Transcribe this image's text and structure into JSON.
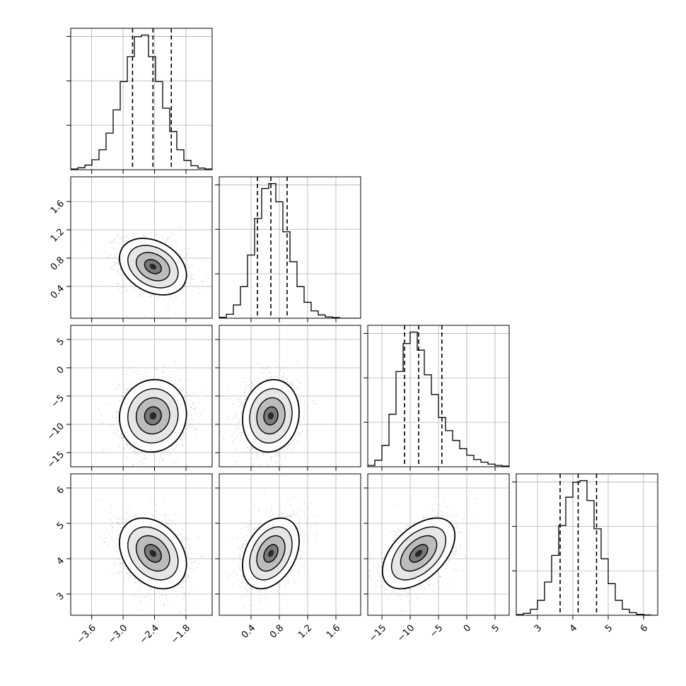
{
  "chart_data": {
    "type": "corner",
    "parameters": [
      {
        "range": [
          -4.0,
          -1.3
        ],
        "ticks": [
          -3.6,
          -3.0,
          -2.4,
          -1.8
        ],
        "tick_labels": [
          "−3.6",
          "−3.0",
          "−2.4",
          "−1.8"
        ],
        "center": -2.43,
        "sigma": 0.32,
        "quantiles": [
          -2.82,
          -2.43,
          -2.08
        ]
      },
      {
        "range": [
          -0.05,
          1.95
        ],
        "ticks": [
          0.4,
          0.8,
          1.2,
          1.6
        ],
        "tick_labels": [
          "0.4",
          "0.8",
          "1.2",
          "1.6"
        ],
        "center": 0.68,
        "sigma": 0.2,
        "quantiles": [
          0.49,
          0.68,
          0.91
        ]
      },
      {
        "range": [
          -17.5,
          7.5
        ],
        "ticks": [
          -15,
          -10,
          -5,
          0,
          5
        ],
        "tick_labels": [
          "−15",
          "−10",
          "−5",
          "0",
          "5"
        ],
        "center": -8.5,
        "sigma": 3.2,
        "quantiles": [
          -11.0,
          -8.5,
          -4.4
        ]
      },
      {
        "range": [
          2.4,
          6.4
        ],
        "ticks": [
          3,
          4,
          5,
          6
        ],
        "tick_labels": [
          "3",
          "4",
          "5",
          "6"
        ],
        "center": 4.15,
        "sigma": 0.5,
        "quantiles": [
          3.64,
          4.15,
          4.67
        ]
      }
    ],
    "histograms": [
      [
        2,
        6,
        14,
        30,
        60,
        110,
        180,
        265,
        340,
        400,
        405,
        340,
        265,
        185,
        115,
        60,
        28,
        12,
        5,
        2
      ],
      [
        3,
        12,
        40,
        95,
        190,
        300,
        390,
        405,
        350,
        260,
        170,
        95,
        48,
        22,
        10,
        4,
        2,
        0,
        0,
        0
      ],
      [
        4,
        20,
        65,
        160,
        290,
        375,
        410,
        355,
        280,
        220,
        150,
        110,
        80,
        55,
        35,
        22,
        14,
        8,
        4,
        2
      ],
      [
        2,
        6,
        18,
        45,
        100,
        180,
        270,
        355,
        400,
        405,
        345,
        260,
        170,
        95,
        45,
        18,
        8,
        3,
        1,
        0
      ]
    ],
    "correlations": [
      [
        1.0,
        -0.3,
        0.05,
        -0.3
      ],
      [
        -0.3,
        1.0,
        0.1,
        0.35
      ],
      [
        0.05,
        0.1,
        1.0,
        0.5
      ],
      [
        -0.3,
        0.35,
        0.5,
        1.0
      ]
    ],
    "grid": true,
    "colors": {
      "line": "#000000",
      "grid": "#b0b0b0",
      "scatter": "#9a9a9a"
    }
  }
}
